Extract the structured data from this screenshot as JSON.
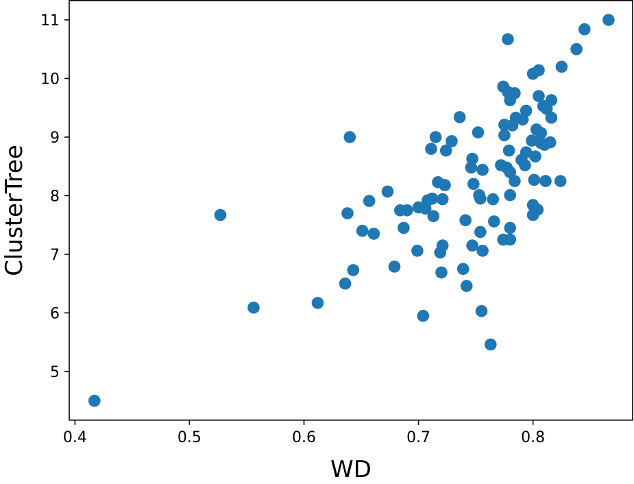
{
  "chart_data": {
    "type": "scatter",
    "xlabel": "WD",
    "ylabel": "ClusterTree",
    "xlim": [
      0.395,
      0.887
    ],
    "ylim": [
      4.17,
      11.33
    ],
    "xticks": [
      0.4,
      0.5,
      0.6,
      0.7,
      0.8
    ],
    "yticks": [
      5,
      6,
      7,
      8,
      9,
      10,
      11
    ],
    "xtick_labels": [
      "0.4",
      "0.5",
      "0.6",
      "0.7",
      "0.8"
    ],
    "ytick_labels": [
      "5",
      "6",
      "7",
      "8",
      "9",
      "10",
      "11"
    ],
    "grid": false,
    "marker_color": "#1f77b4",
    "points": [
      [
        0.417,
        4.5
      ],
      [
        0.527,
        7.67
      ],
      [
        0.556,
        6.09
      ],
      [
        0.612,
        6.17
      ],
      [
        0.636,
        6.5
      ],
      [
        0.638,
        7.7
      ],
      [
        0.64,
        9.0
      ],
      [
        0.643,
        6.73
      ],
      [
        0.651,
        7.4
      ],
      [
        0.657,
        7.91
      ],
      [
        0.661,
        7.35
      ],
      [
        0.673,
        8.07
      ],
      [
        0.679,
        6.79
      ],
      [
        0.684,
        7.75
      ],
      [
        0.687,
        7.45
      ],
      [
        0.69,
        7.75
      ],
      [
        0.699,
        7.06
      ],
      [
        0.7,
        7.8
      ],
      [
        0.704,
        5.95
      ],
      [
        0.706,
        7.78
      ],
      [
        0.708,
        7.92
      ],
      [
        0.711,
        8.8
      ],
      [
        0.712,
        7.95
      ],
      [
        0.713,
        7.65
      ],
      [
        0.715,
        9.0
      ],
      [
        0.717,
        8.23
      ],
      [
        0.719,
        7.03
      ],
      [
        0.72,
        6.69
      ],
      [
        0.721,
        7.15
      ],
      [
        0.721,
        7.94
      ],
      [
        0.723,
        8.18
      ],
      [
        0.724,
        8.77
      ],
      [
        0.729,
        8.93
      ],
      [
        0.736,
        9.34
      ],
      [
        0.739,
        6.75
      ],
      [
        0.741,
        7.58
      ],
      [
        0.742,
        6.46
      ],
      [
        0.746,
        8.48
      ],
      [
        0.747,
        8.63
      ],
      [
        0.747,
        7.15
      ],
      [
        0.748,
        8.2
      ],
      [
        0.752,
        9.08
      ],
      [
        0.753,
        8.01
      ],
      [
        0.754,
        7.38
      ],
      [
        0.754,
        7.95
      ],
      [
        0.755,
        6.03
      ],
      [
        0.756,
        8.44
      ],
      [
        0.756,
        7.06
      ],
      [
        0.763,
        5.46
      ],
      [
        0.765,
        7.94
      ],
      [
        0.766,
        7.56
      ],
      [
        0.772,
        8.52
      ],
      [
        0.774,
        9.86
      ],
      [
        0.774,
        7.25
      ],
      [
        0.775,
        9.21
      ],
      [
        0.775,
        9.03
      ],
      [
        0.777,
        8.48
      ],
      [
        0.778,
        9.77
      ],
      [
        0.778,
        10.67
      ],
      [
        0.779,
        8.77
      ],
      [
        0.78,
        9.63
      ],
      [
        0.78,
        8.4
      ],
      [
        0.78,
        8.01
      ],
      [
        0.78,
        7.45
      ],
      [
        0.78,
        7.25
      ],
      [
        0.782,
        9.2
      ],
      [
        0.784,
        9.75
      ],
      [
        0.784,
        8.25
      ],
      [
        0.785,
        9.33
      ],
      [
        0.79,
        8.61
      ],
      [
        0.791,
        9.3
      ],
      [
        0.793,
        8.52
      ],
      [
        0.794,
        8.74
      ],
      [
        0.794,
        9.45
      ],
      [
        0.799,
        8.94
      ],
      [
        0.8,
        10.08
      ],
      [
        0.8,
        7.84
      ],
      [
        0.8,
        7.67
      ],
      [
        0.801,
        8.27
      ],
      [
        0.802,
        8.67
      ],
      [
        0.803,
        9.13
      ],
      [
        0.804,
        7.76
      ],
      [
        0.805,
        10.14
      ],
      [
        0.805,
        9.7
      ],
      [
        0.807,
        8.9
      ],
      [
        0.807,
        9.07
      ],
      [
        0.809,
        9.53
      ],
      [
        0.81,
        8.87
      ],
      [
        0.811,
        8.25
      ],
      [
        0.812,
        9.48
      ],
      [
        0.815,
        8.91
      ],
      [
        0.816,
        9.63
      ],
      [
        0.816,
        9.33
      ],
      [
        0.824,
        8.25
      ],
      [
        0.825,
        10.2
      ],
      [
        0.838,
        10.5
      ],
      [
        0.845,
        10.84
      ],
      [
        0.866,
        11.0
      ]
    ]
  }
}
